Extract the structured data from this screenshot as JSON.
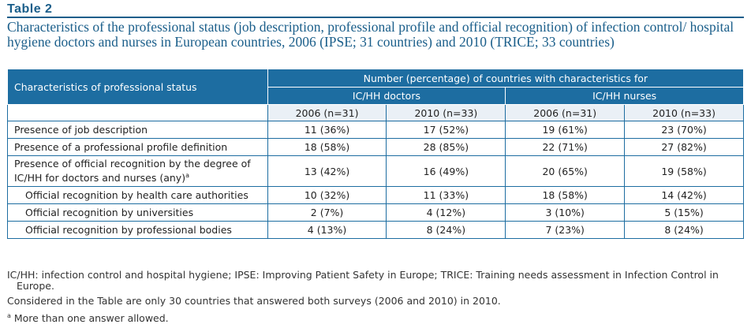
{
  "table_label": "Table 2",
  "caption": "Characteristics of the professional status (job description, professional profile and official recognition) of infection control/ hospital hygiene doctors and nurses in European countries, 2006 (IPSE; 31 countries) and 2010 (TRICE; 33 countries)",
  "header": {
    "row_header": "Characteristics of professional status",
    "group_header": "Number (percentage) of countries with characteristics for",
    "doctors": "IC/HH doctors",
    "nurses": "IC/HH nurses",
    "years": [
      "2006 (n=31)",
      "2010 (n=33)",
      "2006 (n=31)",
      "2010 (n=33)"
    ]
  },
  "rows": [
    {
      "label": "Presence of job description",
      "values": [
        "11 (36%)",
        "17 (52%)",
        "19 (61%)",
        "23 (70%)"
      ]
    },
    {
      "label": "Presence of a professional profile definition",
      "values": [
        "18 (58%)",
        "28 (85%)",
        "22 (71%)",
        "27 (82%)"
      ]
    },
    {
      "label": "Presence of official recognition by the degree of IC/HH for doctors and nurses (any)",
      "sup": "a",
      "values": [
        "13 (42%)",
        "16 (49%)",
        "20 (65%)",
        "19 (58%)"
      ]
    },
    {
      "label": "Official recognition by health care authorities",
      "values": [
        "10 (32%)",
        "11 (33%)",
        "18 (58%)",
        "14 (42%)"
      ]
    },
    {
      "label": "Official recognition by universities",
      "values": [
        "2 (7%)",
        "4 (12%)",
        "3 (10%)",
        "5 (15%)"
      ]
    },
    {
      "label": "Official recognition by professional bodies",
      "values": [
        "4 (13%)",
        "8 (24%)",
        "7 (23%)",
        "8 (24%)"
      ]
    }
  ],
  "notes": {
    "abbrev": "IC/HH: infection control and hospital hygiene; IPSE: Improving Patient Safety in Europe; TRICE: Training needs assessment in Infection Control in Europe.",
    "considered": "Considered in the Table are only 30 countries that answered both surveys (2006 and 2010) in 2010.",
    "footnote_mark": "a",
    "footnote": " More than one answer allowed."
  }
}
